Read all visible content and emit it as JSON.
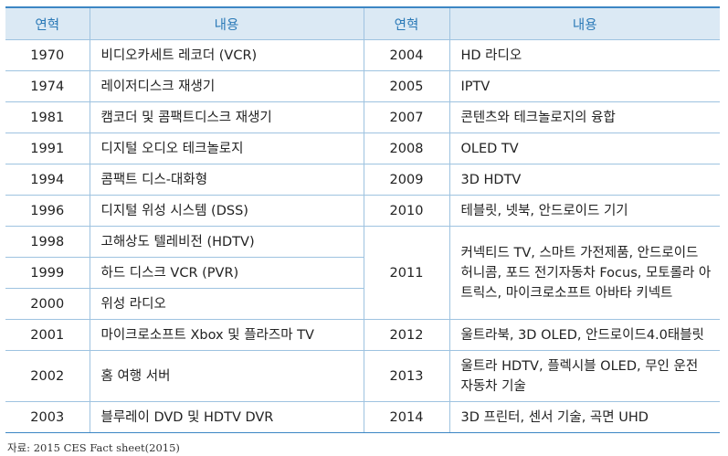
{
  "header": {
    "year": "연혁",
    "content": "내용",
    "year2": "연혁",
    "content2": "내용"
  },
  "rows": [
    {
      "y1": "1970",
      "c1": "비디오카세트 레코더 (VCR)",
      "y2": "2004",
      "c2": "HD 라디오"
    },
    {
      "y1": "1974",
      "c1": "레이저디스크 재생기",
      "y2": "2005",
      "c2": "IPTV"
    },
    {
      "y1": "1981",
      "c1": "캠코더 및 콤팩트디스크 재생기",
      "y2": "2007",
      "c2": "콘텐츠와 테크놀로지의 융합"
    },
    {
      "y1": "1991",
      "c1": "디지털 오디오 테크놀로지",
      "y2": "2008",
      "c2": "OLED TV"
    },
    {
      "y1": "1994",
      "c1": "콤팩트 디스-대화형",
      "y2": "2009",
      "c2": "3D HDTV"
    },
    {
      "y1": "1996",
      "c1": "디지털 위성 시스템 (DSS)",
      "y2": "2010",
      "c2": "테블릿, 넷북, 안드로이드 기기"
    },
    {
      "y1": "1998",
      "c1": "고해상도 텔레비전 (HDTV)",
      "y2": "2011",
      "c2": "커넥티드 TV, 스마트 가전제품, 안드로이드 허니콤, 포드 전기자동차 Focus, 모토롤라 아트릭스, 마이크로소프트 아바타 키넥트"
    },
    {
      "y1": "1999",
      "c1": "하드 디스크 VCR (PVR)"
    },
    {
      "y1": "2000",
      "c1": "위성 라디오"
    },
    {
      "y1": "2001",
      "c1": "마이크로소프트 Xbox 및 플라즈마 TV",
      "y2": "2012",
      "c2": "울트라북, 3D OLED, 안드로이드4.0태블릿"
    },
    {
      "y1": "2002",
      "c1": "홈 여행 서버",
      "y2": "2013",
      "c2": "울트라 HDTV, 플렉시블 OLED, 무인 운전 자동차 기술"
    },
    {
      "y1": "2003",
      "c1": "블루레이 DVD 및 HDTV DVR",
      "y2": "2014",
      "c2": "3D 프린터, 센서 기술, 곡면 UHD"
    }
  ],
  "source": "자료: 2015 CES Fact sheet(2015)",
  "colors": {
    "header_bg": "#dbe9f4",
    "header_text": "#2a79b7",
    "rule": "#3c86c4",
    "grid": "#9ec3e0"
  }
}
